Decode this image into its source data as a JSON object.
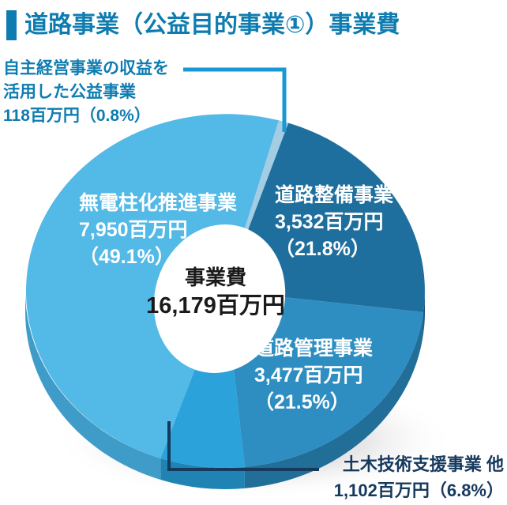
{
  "header": {
    "title": "道路事業（公益目的事業①）事業費",
    "accent_color": "#0E7CB0"
  },
  "colors": {
    "label_blue": "#0E7CB0",
    "callout_blue": "#1899D3",
    "navy": "#16395E",
    "center_text": "#1A1A1A",
    "background": "#FFFFFF"
  },
  "chart_data": {
    "type": "pie",
    "style": "3d-donut",
    "title": "道路事業（公益目的事業①）事業費",
    "unit": "百万円",
    "total": {
      "label": "事業費",
      "value": 16179,
      "display": "16,179百万円"
    },
    "center_lines": [
      "事業費",
      "16,179百万円"
    ],
    "start_angle_deg": 15.6,
    "legend_position": "on-slices",
    "slices": [
      {
        "name": "自主経営事業の収益を活用した公益事業",
        "value": 118,
        "percent": 0.8,
        "color": "#A2CDE3",
        "side_color": "#8ABDD8",
        "lines": [
          "自主経営事業の収益を",
          "活用した公益事業",
          "118百万円（0.8%）"
        ]
      },
      {
        "name": "道路整備事業",
        "value": 3532,
        "percent": 21.8,
        "color": "#1F6F9E",
        "side_color": "#174E74",
        "lines": [
          "道路整備事業",
          "3,532百万円",
          "（21.8%）"
        ]
      },
      {
        "name": "道路管理事業",
        "value": 3477,
        "percent": 21.5,
        "color": "#2E8EC2",
        "side_color": "#216E99",
        "lines": [
          "道路管理事業",
          "3,477百万円",
          "（21.5%）"
        ]
      },
      {
        "name": "土木技術支援事業 他",
        "value": 1102,
        "percent": 6.8,
        "color": "#2BA3DA",
        "side_color": "#1F84B3",
        "lines": [
          "土木技術支援事業 他",
          "1,102百万円（6.8%）"
        ]
      },
      {
        "name": "無電柱化推進事業",
        "value": 7950,
        "percent": 49.1,
        "color": "#53B9E6",
        "side_color": "#3F9CC8",
        "lines": [
          "無電柱化推進事業",
          "7,950百万円",
          "（49.1%）"
        ]
      }
    ]
  }
}
